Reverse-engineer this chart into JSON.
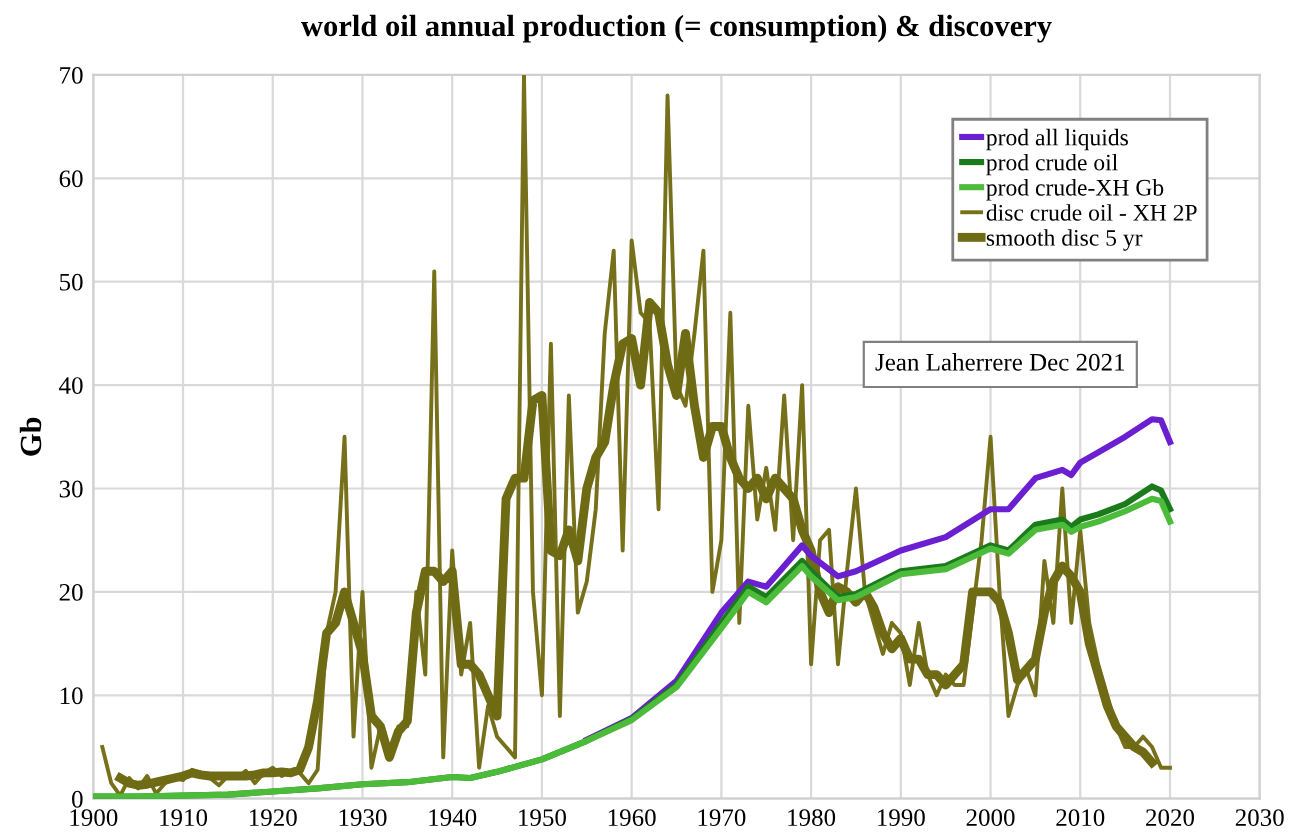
{
  "chart_data": {
    "type": "line",
    "title": "world oil annual production (= consumption) & discovery",
    "ylabel": "Gb",
    "xlim": [
      1900,
      2030
    ],
    "xticks": [
      1900,
      1910,
      1920,
      1930,
      1940,
      1950,
      1960,
      1970,
      1980,
      1990,
      2000,
      2010,
      2020,
      2030
    ],
    "ylim": [
      0,
      70
    ],
    "yticks": [
      0,
      10,
      20,
      30,
      40,
      50,
      60,
      70
    ],
    "grid": true,
    "legend": "top right",
    "marker": "none",
    "line_style": "solid",
    "annotations": [
      "Jean Laherrere Dec 2021"
    ],
    "series": [
      {
        "name": "prod all liquids",
        "color": "#6a1fd0",
        "x": [
          1955,
          1960,
          1965,
          1970,
          1973,
          1975,
          1979,
          1980,
          1983,
          1985,
          1990,
          1995,
          2000,
          2002,
          2005,
          2008,
          2009,
          2010,
          2012,
          2015,
          2018,
          2019,
          2020
        ],
        "values": [
          5.7,
          7.8,
          11.4,
          18,
          21,
          20.5,
          24.5,
          23.5,
          21.5,
          22,
          24,
          25.3,
          28,
          28,
          31,
          31.8,
          31.3,
          32.5,
          33.5,
          35,
          36.7,
          36.6,
          34.5
        ]
      },
      {
        "name": "prod crude oil",
        "color": "#1b7a1b",
        "x": [
          1900,
          1905,
          1910,
          1915,
          1920,
          1925,
          1930,
          1935,
          1940,
          1942,
          1945,
          1950,
          1955,
          1960,
          1965,
          1970,
          1973,
          1975,
          1979,
          1980,
          1983,
          1985,
          1990,
          1995,
          2000,
          2002,
          2005,
          2008,
          2009,
          2010,
          2012,
          2015,
          2018,
          2019,
          2020
        ],
        "values": [
          0.2,
          0.2,
          0.3,
          0.4,
          0.7,
          1.0,
          1.4,
          1.6,
          2.1,
          2.0,
          2.6,
          3.8,
          5.6,
          7.7,
          11.0,
          17.0,
          20.5,
          19.5,
          23.0,
          22.0,
          19.5,
          19.8,
          22.0,
          22.5,
          24.5,
          24.0,
          26.5,
          27.0,
          26.3,
          27.0,
          27.5,
          28.5,
          30.2,
          29.8,
          28.0
        ]
      },
      {
        "name": "prod crude-XH Gb",
        "color": "#4cbb3a",
        "x": [
          1900,
          1905,
          1910,
          1915,
          1920,
          1925,
          1930,
          1935,
          1940,
          1942,
          1945,
          1950,
          1955,
          1960,
          1965,
          1970,
          1973,
          1975,
          1979,
          1980,
          1983,
          1985,
          1990,
          1995,
          2000,
          2002,
          2005,
          2008,
          2009,
          2010,
          2012,
          2015,
          2018,
          2019,
          2020
        ],
        "values": [
          0.2,
          0.2,
          0.3,
          0.4,
          0.7,
          1.0,
          1.4,
          1.6,
          2.1,
          2.0,
          2.6,
          3.8,
          5.6,
          7.6,
          10.8,
          16.5,
          20,
          19,
          22.5,
          21.5,
          19.2,
          19.5,
          21.7,
          22.2,
          24.2,
          23.7,
          26,
          26.5,
          25.8,
          26.3,
          26.8,
          27.8,
          29,
          28.8,
          26.8
        ]
      },
      {
        "name": "disc crude oil - XH 2P",
        "color": "#76701a",
        "x": [
          1901,
          1902,
          1903,
          1904,
          1905,
          1906,
          1907,
          1908,
          1909,
          1910,
          1911,
          1912,
          1913,
          1914,
          1915,
          1916,
          1917,
          1918,
          1919,
          1920,
          1921,
          1922,
          1923,
          1924,
          1925,
          1926,
          1927,
          1928,
          1929,
          1930,
          1931,
          1932,
          1933,
          1934,
          1935,
          1936,
          1937,
          1938,
          1939,
          1940,
          1941,
          1942,
          1943,
          1944,
          1945,
          1946,
          1947,
          1948,
          1949,
          1950,
          1951,
          1952,
          1953,
          1954,
          1955,
          1956,
          1957,
          1958,
          1959,
          1960,
          1961,
          1962,
          1963,
          1964,
          1965,
          1966,
          1967,
          1968,
          1969,
          1970,
          1971,
          1972,
          1973,
          1974,
          1975,
          1976,
          1977,
          1978,
          1979,
          1980,
          1981,
          1982,
          1983,
          1984,
          1985,
          1986,
          1987,
          1988,
          1989,
          1990,
          1991,
          1992,
          1993,
          1994,
          1995,
          1996,
          1997,
          1998,
          1999,
          2000,
          2001,
          2002,
          2003,
          2004,
          2005,
          2006,
          2007,
          2008,
          2009,
          2010,
          2011,
          2012,
          2013,
          2014,
          2015,
          2016,
          2017,
          2018,
          2019,
          2020
        ],
        "values": [
          5,
          1.5,
          0.3,
          2,
          1,
          2.2,
          0.5,
          1.5,
          2,
          1.8,
          2.8,
          2.5,
          2,
          1.3,
          2.2,
          2,
          2.7,
          1.5,
          2.5,
          3,
          2.2,
          2.7,
          2.5,
          1.5,
          2.8,
          16,
          20,
          35,
          6,
          20,
          3,
          7,
          4,
          7,
          7,
          20,
          12,
          51,
          4,
          24,
          12,
          17,
          3,
          9,
          6,
          5,
          4,
          70,
          20,
          10,
          44,
          8,
          39,
          18,
          21,
          28,
          45,
          53,
          24,
          54,
          47,
          46,
          28,
          68,
          40,
          38,
          45,
          53,
          20,
          25,
          47,
          17,
          38,
          27,
          32,
          26,
          39,
          25,
          40,
          13,
          25,
          26,
          13,
          22,
          30,
          20,
          17,
          14,
          17,
          16,
          11,
          17,
          12,
          10,
          12,
          11,
          11,
          18,
          25,
          35,
          20,
          8,
          11,
          12.5,
          10,
          23,
          17,
          30,
          17,
          26,
          17,
          13,
          10,
          7,
          5,
          5,
          6,
          5,
          3,
          3
        ]
      },
      {
        "name": "smooth disc 5 yr",
        "color": "#6f6a14",
        "x": [
          1903,
          1904,
          1905,
          1906,
          1907,
          1908,
          1909,
          1910,
          1911,
          1912,
          1913,
          1914,
          1915,
          1916,
          1917,
          1918,
          1919,
          1920,
          1921,
          1922,
          1923,
          1924,
          1925,
          1926,
          1927,
          1928,
          1929,
          1930,
          1931,
          1932,
          1933,
          1934,
          1935,
          1936,
          1937,
          1938,
          1939,
          1940,
          1941,
          1942,
          1943,
          1944,
          1945,
          1946,
          1947,
          1948,
          1949,
          1950,
          1951,
          1952,
          1953,
          1954,
          1955,
          1956,
          1957,
          1958,
          1959,
          1960,
          1961,
          1962,
          1963,
          1964,
          1965,
          1966,
          1967,
          1968,
          1969,
          1970,
          1971,
          1972,
          1973,
          1974,
          1975,
          1976,
          1977,
          1978,
          1979,
          1980,
          1981,
          1982,
          1983,
          1984,
          1985,
          1986,
          1987,
          1988,
          1989,
          1990,
          1991,
          1992,
          1993,
          1994,
          1995,
          1996,
          1997,
          1998,
          1999,
          2000,
          2001,
          2002,
          2003,
          2004,
          2005,
          2006,
          2007,
          2008,
          2009,
          2010,
          2011,
          2012,
          2013,
          2014,
          2015,
          2016,
          2017,
          2018
        ],
        "values": [
          2,
          1.5,
          1.3,
          1.4,
          1.6,
          1.8,
          2.0,
          2.2,
          2.5,
          2.3,
          2.2,
          2.2,
          2.2,
          2.2,
          2.2,
          2.3,
          2.5,
          2.5,
          2.6,
          2.5,
          2.8,
          5,
          9.5,
          16,
          17,
          20,
          17,
          14,
          8,
          7,
          4,
          6.5,
          7.5,
          18,
          22,
          22,
          21,
          22,
          13,
          13,
          12,
          10,
          8,
          29,
          31,
          31,
          38.5,
          39,
          24,
          23.5,
          26,
          23,
          30,
          33,
          34.5,
          40,
          44,
          44.5,
          40,
          48,
          47,
          42,
          39,
          45,
          38,
          33,
          36,
          36,
          33,
          31,
          30,
          31,
          29,
          31,
          30,
          29,
          26,
          24,
          20,
          18,
          20.5,
          20,
          19,
          20,
          18.5,
          16,
          14.5,
          15.5,
          13.5,
          13.5,
          12,
          12,
          11,
          12,
          13,
          20,
          20,
          20,
          19,
          16,
          11.5,
          12.5,
          13.5,
          18,
          21,
          22.5,
          21.5,
          20,
          15,
          12,
          9,
          7,
          6,
          5,
          4.5,
          3.5
        ]
      }
    ]
  }
}
